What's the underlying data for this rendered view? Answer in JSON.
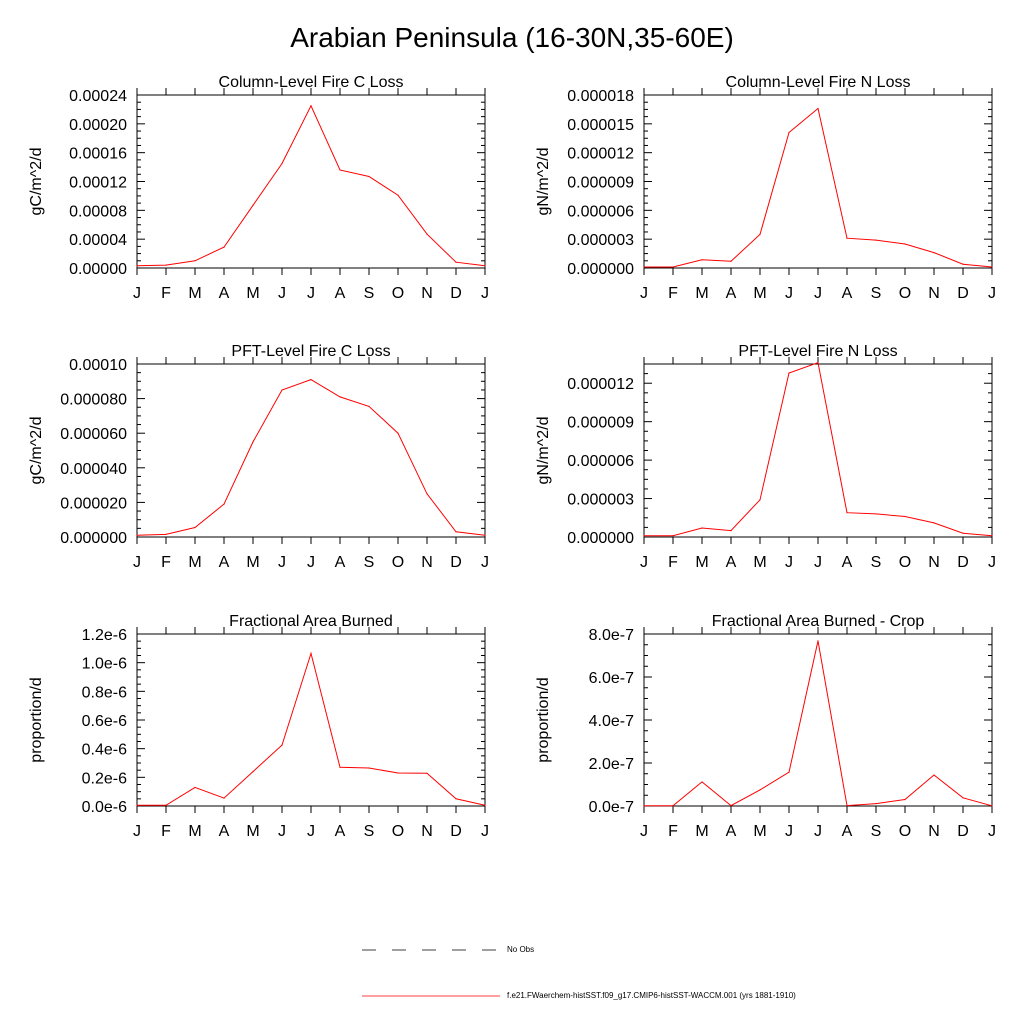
{
  "title": "Arabian Peninsula (16-30N,35-60E)",
  "months": [
    "J",
    "F",
    "M",
    "A",
    "M",
    "J",
    "J",
    "A",
    "S",
    "O",
    "N",
    "D",
    "J"
  ],
  "line_color": "#ff0000",
  "chart_data": [
    {
      "type": "line",
      "title": "Column-Level Fire C Loss",
      "ylabel": "gC/m^2/d",
      "ylim": [
        0,
        0.00024
      ],
      "yticks": [
        "0.00000",
        "0.00004",
        "0.00008",
        "0.00012",
        "0.00016",
        "0.00020",
        "0.00024"
      ],
      "categories": [
        "J",
        "F",
        "M",
        "A",
        "M",
        "J",
        "J",
        "A",
        "S",
        "O",
        "N",
        "D",
        "J"
      ],
      "series": [
        {
          "values": [
            3e-06,
            4e-06,
            1e-05,
            2.9e-05,
            8.7e-05,
            0.000145,
            0.000225,
            0.000136,
            0.000127,
            0.000101,
            4.7e-05,
            8e-06,
            3e-06
          ]
        }
      ]
    },
    {
      "type": "line",
      "title": "Column-Level Fire N Loss",
      "ylabel": "gN/m^2/d",
      "ylim": [
        0,
        1.8e-05
      ],
      "yticks": [
        "0.000000",
        "0.000003",
        "0.000006",
        "0.000009",
        "0.000012",
        "0.000015",
        "0.000018"
      ],
      "categories": [
        "J",
        "F",
        "M",
        "A",
        "M",
        "J",
        "J",
        "A",
        "S",
        "O",
        "N",
        "D",
        "J"
      ],
      "series": [
        {
          "values": [
            1e-07,
            1e-07,
            8.5e-07,
            7e-07,
            3.5e-06,
            1.41e-05,
            1.66e-05,
            3.1e-06,
            2.9e-06,
            2.5e-06,
            1.6e-06,
            4e-07,
            1e-07
          ]
        }
      ]
    },
    {
      "type": "line",
      "title": "PFT-Level Fire C Loss",
      "ylabel": "gC/m^2/d",
      "ylim": [
        0,
        0.0001
      ],
      "yticks": [
        "0.000000",
        "0.000020",
        "0.000040",
        "0.000060",
        "0.000080",
        "0.00010"
      ],
      "categories": [
        "J",
        "F",
        "M",
        "A",
        "M",
        "J",
        "J",
        "A",
        "S",
        "O",
        "N",
        "D",
        "J"
      ],
      "series": [
        {
          "values": [
            1e-06,
            1.5e-06,
            5.5e-06,
            1.9e-05,
            5.5e-05,
            8.5e-05,
            9.1e-05,
            8.1e-05,
            7.55e-05,
            6e-05,
            2.5e-05,
            3e-06,
            1e-06
          ]
        }
      ]
    },
    {
      "type": "line",
      "title": "PFT-Level Fire N Loss",
      "ylabel": "gN/m^2/d",
      "ylim": [
        0,
        1.35e-05
      ],
      "yticks": [
        "0.000000",
        "0.000003",
        "0.000006",
        "0.000009",
        "0.000012"
      ],
      "categories": [
        "J",
        "F",
        "M",
        "A",
        "M",
        "J",
        "J",
        "A",
        "S",
        "O",
        "N",
        "D",
        "J"
      ],
      "series": [
        {
          "values": [
            1e-07,
            1e-07,
            7e-07,
            5e-07,
            2.9e-06,
            1.28e-05,
            1.36e-05,
            1.9e-06,
            1.8e-06,
            1.6e-06,
            1.1e-06,
            3e-07,
            1e-07
          ]
        }
      ]
    },
    {
      "type": "line",
      "title": "Fractional Area Burned",
      "ylabel": "proportion/d",
      "ylim": [
        0,
        1.2e-06
      ],
      "yticks": [
        "0.0e-6",
        "0.2e-6",
        "0.4e-6",
        "0.6e-6",
        "0.8e-6",
        "1.0e-6",
        "1.2e-6"
      ],
      "categories": [
        "J",
        "F",
        "M",
        "A",
        "M",
        "J",
        "J",
        "A",
        "S",
        "O",
        "N",
        "D",
        "J"
      ],
      "series": [
        {
          "values": [
            5e-09,
            5e-09,
            1.3e-07,
            5.5e-08,
            2.4e-07,
            4.25e-07,
            1.065e-06,
            2.7e-07,
            2.65e-07,
            2.3e-07,
            2.28e-07,
            5e-08,
            5e-09
          ]
        }
      ]
    },
    {
      "type": "line",
      "title": "Fractional Area Burned - Crop",
      "ylabel": "proportion/d",
      "ylim": [
        0,
        8e-07
      ],
      "yticks": [
        "0.0e-7",
        "2.0e-7",
        "4.0e-7",
        "6.0e-7",
        "8.0e-7"
      ],
      "categories": [
        "J",
        "F",
        "M",
        "A",
        "M",
        "J",
        "J",
        "A",
        "S",
        "O",
        "N",
        "D",
        "J"
      ],
      "series": [
        {
          "values": [
            1e-09,
            1e-09,
            1.12e-07,
            2e-09,
            7.5e-08,
            1.57e-07,
            7.68e-07,
            2e-09,
            1.1e-08,
            3e-08,
            1.44e-07,
            3.8e-08,
            1e-09
          ]
        }
      ]
    }
  ],
  "legend": [
    {
      "label": "No Obs",
      "style": "dashed",
      "color": "#000000"
    },
    {
      "label": "f.e21.FWaerchem-histSST.f09_g17.CMIP6-histSST-WACCM.001 (yrs 1881-1910)",
      "style": "solid",
      "color": "#ff0000"
    }
  ]
}
